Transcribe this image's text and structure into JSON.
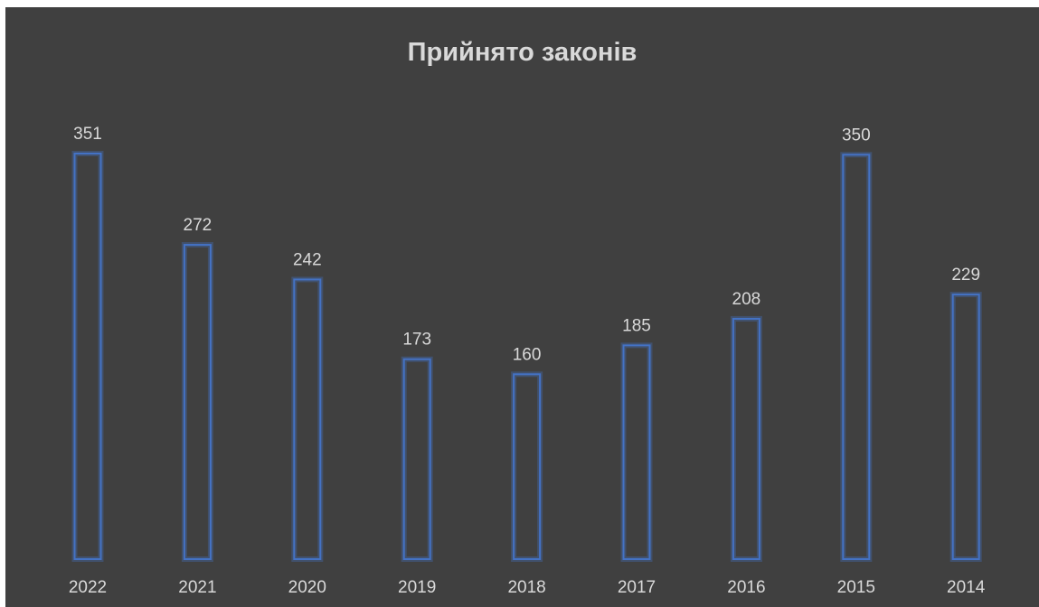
{
  "chart_data": {
    "type": "bar",
    "title": "Прийнято законів",
    "categories": [
      "2022",
      "2021",
      "2020",
      "2019",
      "2018",
      "2017",
      "2016",
      "2015",
      "2014"
    ],
    "values": [
      351,
      272,
      242,
      173,
      160,
      185,
      208,
      350,
      229
    ],
    "xlabel": "",
    "ylabel": "",
    "ylim": [
      0,
      351
    ],
    "grid": false,
    "legend": "none",
    "data_labels": true,
    "colors": {
      "background": "#404040",
      "bar_outline": "#4472c4",
      "text": "#d9d9d9"
    }
  }
}
